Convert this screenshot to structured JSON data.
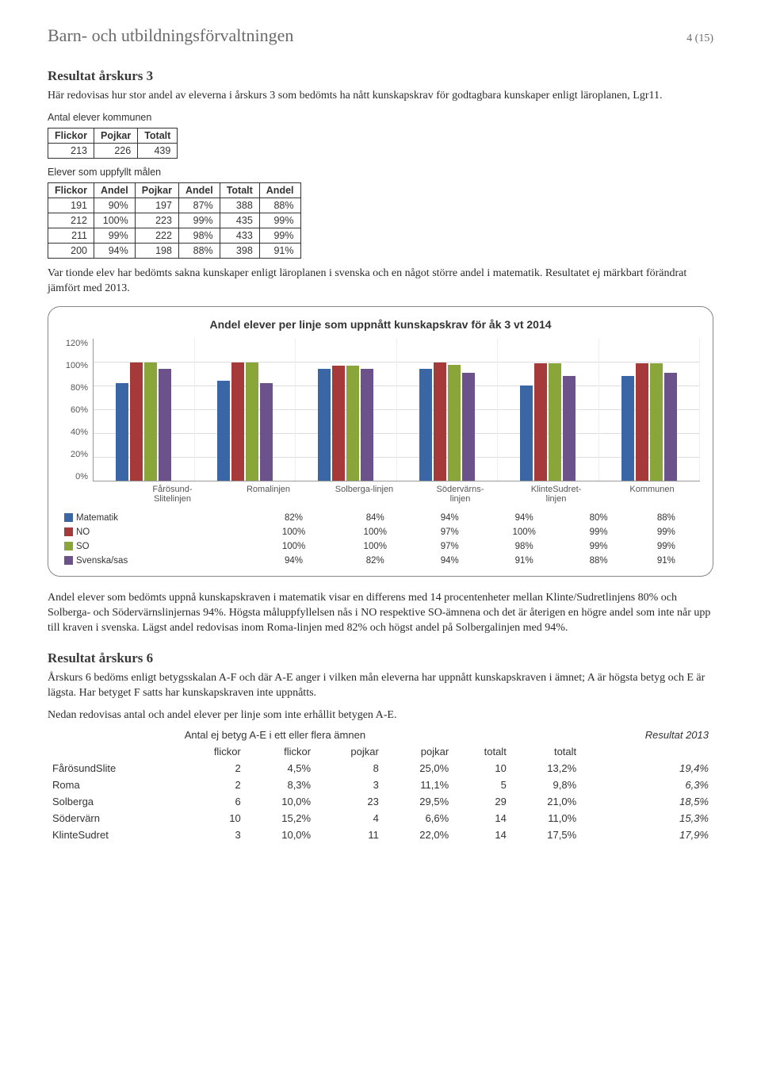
{
  "header": {
    "department": "Barn- och utbildningsförvaltningen",
    "page_number": "4 (15)"
  },
  "section1": {
    "title": "Resultat årskurs 3",
    "intro": "Här redovisas hur stor andel av eleverna i årskurs 3 som bedömts ha nått kunskapskrav för godtagbara kunskaper enligt läroplanen, Lgr11."
  },
  "table_kommun": {
    "caption": "Antal elever kommunen",
    "headers": [
      "Flickor",
      "Pojkar",
      "Totalt"
    ],
    "row": [
      "213",
      "226",
      "439"
    ]
  },
  "table_uppfyllt": {
    "caption": "Elever som uppfyllt målen",
    "headers": [
      "Flickor",
      "Andel",
      "Pojkar",
      "Andel",
      "Totalt",
      "Andel"
    ],
    "rows": [
      [
        "191",
        "90%",
        "197",
        "87%",
        "388",
        "88%"
      ],
      [
        "212",
        "100%",
        "223",
        "99%",
        "435",
        "99%"
      ],
      [
        "211",
        "99%",
        "222",
        "98%",
        "433",
        "99%"
      ],
      [
        "200",
        "94%",
        "198",
        "88%",
        "398",
        "91%"
      ]
    ]
  },
  "para_after_tables": "Var tionde elev har bedömts sakna kunskaper enligt läroplanen i svenska och en något större andel i matematik. Resultatet ej märkbart förändrat jämfört med 2013.",
  "chart": {
    "title": "Andel elever per linje som uppnått kunskapskrav för åk 3 vt 2014",
    "y_ticks": [
      "120%",
      "100%",
      "80%",
      "60%",
      "40%",
      "20%",
      "0%"
    ],
    "y_max": 120,
    "categories": [
      "Fårösund-\nSlitelinjen",
      "Romalinjen",
      "Solberga-linjen",
      "Södervärns-\nlinjen",
      "KlinteSudret-\nlinjen",
      "Kommunen"
    ],
    "series": [
      {
        "name": "Matematik",
        "color": "#3a66a6",
        "values": [
          82,
          84,
          94,
          94,
          80,
          88
        ]
      },
      {
        "name": "NO",
        "color": "#a63a3a",
        "values": [
          100,
          100,
          97,
          100,
          99,
          99
        ]
      },
      {
        "name": "SO",
        "color": "#8aa63a",
        "values": [
          100,
          100,
          97,
          98,
          99,
          99
        ]
      },
      {
        "name": "Svenska/sas",
        "color": "#6b528a",
        "values": [
          94,
          82,
          94,
          91,
          88,
          91
        ]
      }
    ]
  },
  "para_after_chart": "Andel elever som bedömts uppnå kunskapskraven i matematik visar en differens med 14 procentenheter mellan Klinte/Sudretlinjens 80% och Solberga- och Södervärnslinjernas 94%. Högsta måluppfyllelsen nås i NO respektive SO-ämnena och det är återigen en högre andel som inte når upp till kraven i svenska. Lägst andel redovisas inom Roma-linjen med 82% och högst andel på Solbergalinjen med 94%.",
  "section2": {
    "title": "Resultat årskurs 6",
    "para1": "Årskurs 6 bedöms enligt betygsskalan A-F och där A-E anger i vilken mån eleverna har uppnått kunskapskraven i ämnet; A är högsta betyg och E är lägsta. Har betyget F satts har kunskapskraven inte uppnåtts.",
    "para2": "Nedan redovisas antal och andel elever per linje som inte erhållit betygen A-E."
  },
  "table_ak6": {
    "caption": "Antal ej betyg A-E i ett eller flera ämnen",
    "result_col": "Resultat 2013",
    "headers": [
      "",
      "flickor",
      "flickor",
      "pojkar",
      "pojkar",
      "totalt",
      "totalt",
      ""
    ],
    "rows": [
      [
        "FårösundSlite",
        "2",
        "4,5%",
        "8",
        "25,0%",
        "10",
        "13,2%",
        "19,4%"
      ],
      [
        "Roma",
        "2",
        "8,3%",
        "3",
        "11,1%",
        "5",
        "9,8%",
        "6,3%"
      ],
      [
        "Solberga",
        "6",
        "10,0%",
        "23",
        "29,5%",
        "29",
        "21,0%",
        "18,5%"
      ],
      [
        "Södervärn",
        "10",
        "15,2%",
        "4",
        "6,6%",
        "14",
        "11,0%",
        "15,3%"
      ],
      [
        "KlinteSudret",
        "3",
        "10,0%",
        "11",
        "22,0%",
        "14",
        "17,5%",
        "17,9%"
      ]
    ]
  }
}
